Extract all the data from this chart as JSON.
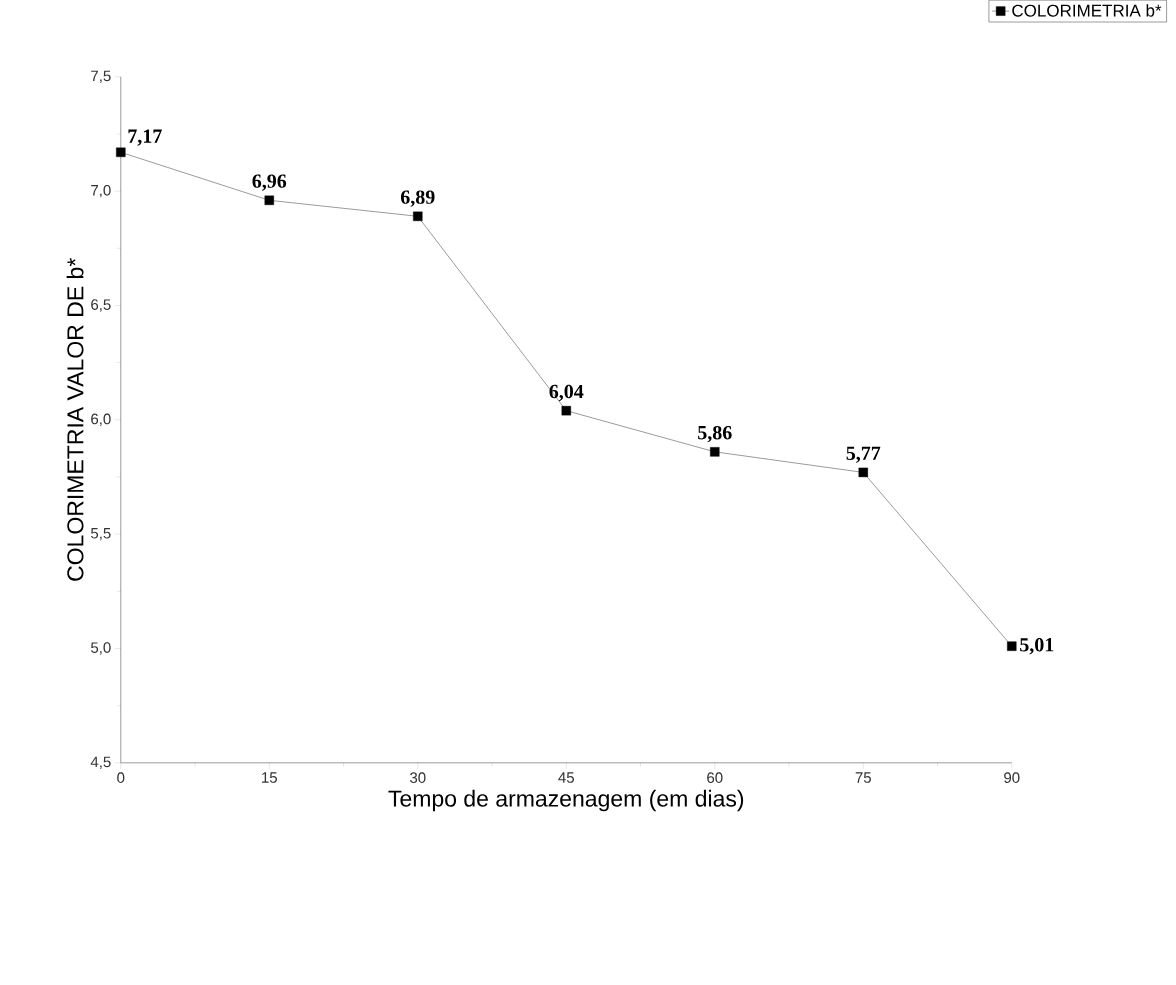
{
  "chart_data": {
    "type": "line",
    "xlabel": "Tempo de armazenagem (em dias)",
    "ylabel": "COLORIMETRIA VALOR DE b*",
    "x": [
      0,
      15,
      30,
      45,
      60,
      75,
      90
    ],
    "series": [
      {
        "name": "COLORIMETRIA b*",
        "color": "#000000",
        "values": [
          7.17,
          6.96,
          6.89,
          6.04,
          5.86,
          5.77,
          5.01
        ],
        "value_labels": [
          "7,17",
          "6,96",
          "6,89",
          "6,04",
          "5,86",
          "5,77",
          "5,01"
        ]
      }
    ],
    "xlim": [
      0,
      90
    ],
    "xticks": [
      0,
      15,
      30,
      45,
      60,
      75,
      90
    ],
    "ylim": [
      4.5,
      7.5
    ],
    "yticks": [
      {
        "value": 4.5,
        "label": "4,5"
      },
      {
        "value": 5,
        "label": "5,0"
      },
      {
        "value": 5.5,
        "label": "5,5"
      },
      {
        "value": 6,
        "label": "6,0"
      },
      {
        "value": 6.5,
        "label": "6,5"
      },
      {
        "value": 7,
        "label": "7,0"
      },
      {
        "value": 7.5,
        "label": "7,5"
      }
    ],
    "marker": "square",
    "line_style": "solid",
    "legend": "top right",
    "grid": false
  }
}
